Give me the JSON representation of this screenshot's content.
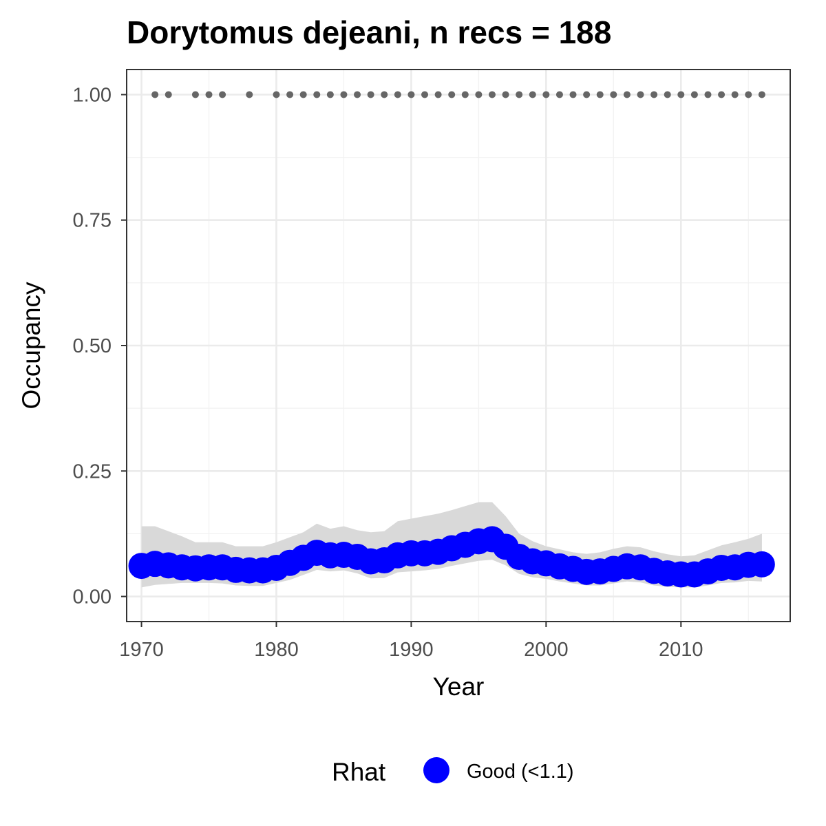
{
  "chart_data": {
    "type": "line",
    "title": "Dorytomus dejeani, n recs = 188",
    "xlabel": "Year",
    "ylabel": "Occupancy",
    "xlim": [
      1968.9,
      2018.1
    ],
    "ylim": [
      -0.05,
      1.05
    ],
    "x_ticks": [
      1970,
      1980,
      1990,
      2000,
      2010
    ],
    "x_tick_labels": [
      "1970",
      "1980",
      "1990",
      "2000",
      "2010"
    ],
    "y_ticks": [
      0.0,
      0.25,
      0.5,
      0.75,
      1.0
    ],
    "y_tick_labels": [
      "0.00",
      "0.25",
      "0.50",
      "0.75",
      "1.00"
    ],
    "grid": true,
    "legend": {
      "title": "Rhat",
      "position": "bottom",
      "entries": [
        {
          "label": "Good (<1.1)",
          "color": "#0000ff"
        }
      ]
    },
    "series": [
      {
        "name": "Good (<1.1)",
        "color": "#0000ff",
        "x": [
          1970,
          1971,
          1972,
          1973,
          1974,
          1975,
          1976,
          1977,
          1978,
          1979,
          1980,
          1981,
          1982,
          1983,
          1984,
          1985,
          1986,
          1987,
          1988,
          1989,
          1990,
          1991,
          1992,
          1993,
          1994,
          1995,
          1996,
          1997,
          1998,
          1999,
          2000,
          2001,
          2002,
          2003,
          2004,
          2005,
          2006,
          2007,
          2008,
          2009,
          2010,
          2011,
          2012,
          2013,
          2014,
          2015,
          2016
        ],
        "y": [
          0.061,
          0.065,
          0.062,
          0.058,
          0.056,
          0.058,
          0.058,
          0.053,
          0.052,
          0.052,
          0.057,
          0.067,
          0.077,
          0.087,
          0.082,
          0.083,
          0.079,
          0.07,
          0.072,
          0.082,
          0.086,
          0.086,
          0.089,
          0.096,
          0.103,
          0.11,
          0.114,
          0.099,
          0.079,
          0.07,
          0.066,
          0.06,
          0.055,
          0.049,
          0.05,
          0.055,
          0.06,
          0.058,
          0.051,
          0.046,
          0.044,
          0.044,
          0.05,
          0.057,
          0.058,
          0.063,
          0.064
        ],
        "lower": [
          0.018,
          0.023,
          0.025,
          0.027,
          0.027,
          0.027,
          0.026,
          0.022,
          0.021,
          0.021,
          0.027,
          0.033,
          0.043,
          0.053,
          0.05,
          0.052,
          0.046,
          0.036,
          0.037,
          0.048,
          0.05,
          0.052,
          0.055,
          0.061,
          0.066,
          0.071,
          0.073,
          0.062,
          0.045,
          0.038,
          0.035,
          0.03,
          0.026,
          0.022,
          0.022,
          0.026,
          0.03,
          0.028,
          0.022,
          0.019,
          0.018,
          0.018,
          0.022,
          0.027,
          0.028,
          0.031,
          0.03
        ],
        "upper": [
          0.14,
          0.14,
          0.13,
          0.12,
          0.108,
          0.108,
          0.108,
          0.1,
          0.1,
          0.1,
          0.108,
          0.118,
          0.128,
          0.145,
          0.135,
          0.14,
          0.132,
          0.128,
          0.13,
          0.15,
          0.155,
          0.16,
          0.165,
          0.172,
          0.18,
          0.188,
          0.188,
          0.16,
          0.125,
          0.11,
          0.1,
          0.094,
          0.088,
          0.085,
          0.088,
          0.095,
          0.1,
          0.098,
          0.09,
          0.084,
          0.08,
          0.082,
          0.092,
          0.102,
          0.108,
          0.115,
          0.125
        ]
      }
    ],
    "record_years": {
      "color": "#666666",
      "y": 1.0,
      "x": [
        1971,
        1972,
        1974,
        1975,
        1976,
        1978,
        1980,
        1981,
        1982,
        1983,
        1984,
        1985,
        1986,
        1987,
        1988,
        1989,
        1990,
        1991,
        1992,
        1993,
        1994,
        1995,
        1996,
        1997,
        1998,
        1999,
        2000,
        2001,
        2002,
        2003,
        2004,
        2005,
        2006,
        2007,
        2008,
        2009,
        2010,
        2011,
        2012,
        2013,
        2014,
        2015,
        2016
      ]
    },
    "ribbon_color": "#d9d9d9"
  }
}
